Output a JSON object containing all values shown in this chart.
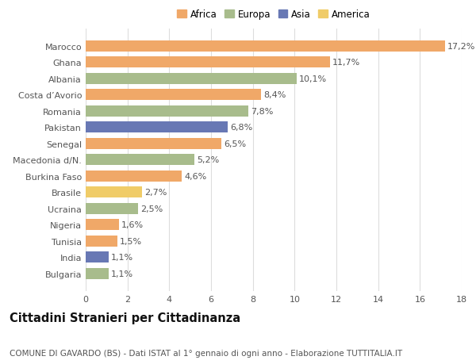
{
  "categories": [
    "Bulgaria",
    "India",
    "Tunisia",
    "Nigeria",
    "Ucraina",
    "Brasile",
    "Burkina Faso",
    "Macedonia d/N.",
    "Senegal",
    "Pakistan",
    "Romania",
    "Costa d’Avorio",
    "Albania",
    "Ghana",
    "Marocco"
  ],
  "values": [
    1.1,
    1.1,
    1.5,
    1.6,
    2.5,
    2.7,
    4.6,
    5.2,
    6.5,
    6.8,
    7.8,
    8.4,
    10.1,
    11.7,
    17.2
  ],
  "labels": [
    "1,1%",
    "1,1%",
    "1,5%",
    "1,6%",
    "2,5%",
    "2,7%",
    "4,6%",
    "5,2%",
    "6,5%",
    "6,8%",
    "7,8%",
    "8,4%",
    "10,1%",
    "11,7%",
    "17,2%"
  ],
  "continents": [
    "Europa",
    "Asia",
    "Africa",
    "Africa",
    "Europa",
    "America",
    "Africa",
    "Europa",
    "Africa",
    "Asia",
    "Europa",
    "Africa",
    "Europa",
    "Africa",
    "Africa"
  ],
  "continent_colors": {
    "Africa": "#F0A868",
    "Europa": "#A8BC8C",
    "Asia": "#6878B4",
    "America": "#F0CC68"
  },
  "legend_order": [
    "Africa",
    "Europa",
    "Asia",
    "America"
  ],
  "title": "Cittadini Stranieri per Cittadinanza",
  "subtitle": "COMUNE DI GAVARDO (BS) - Dati ISTAT al 1° gennaio di ogni anno - Elaborazione TUTTITALIA.IT",
  "xlim": [
    0,
    18
  ],
  "xticks": [
    0,
    2,
    4,
    6,
    8,
    10,
    12,
    14,
    16,
    18
  ],
  "background_color": "#ffffff",
  "grid_color": "#dddddd",
  "bar_height": 0.68,
  "label_fontsize": 8.0,
  "tick_fontsize": 8.0,
  "title_fontsize": 10.5,
  "subtitle_fontsize": 7.5,
  "legend_fontsize": 8.5
}
